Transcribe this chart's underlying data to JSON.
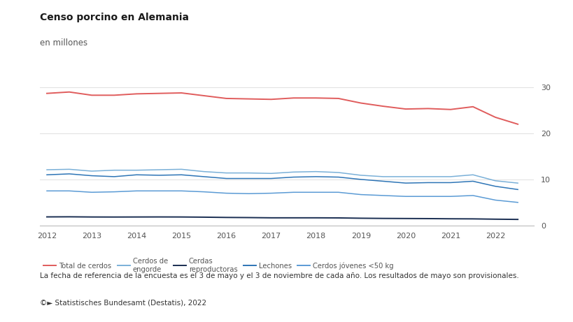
{
  "title": "Censo porcino en Alemania",
  "subtitle": "en millones",
  "background_color": "#ffffff",
  "note": "La fecha de referencia de la encuesta es el 3 de mayo y el 3 de noviembre de cada año. Los resultados de mayo son provisionales.",
  "source": "©► Statistisches Bundesamt (Destatis), 2022",
  "x_values": [
    2012.0,
    2012.5,
    2013.0,
    2013.5,
    2014.0,
    2014.5,
    2015.0,
    2015.5,
    2016.0,
    2016.5,
    2017.0,
    2017.5,
    2018.0,
    2018.5,
    2019.0,
    2019.5,
    2020.0,
    2020.5,
    2021.0,
    2021.5,
    2022.0,
    2022.5
  ],
  "total_cerdos": [
    28.7,
    29.0,
    28.3,
    28.3,
    28.6,
    28.7,
    28.8,
    28.2,
    27.6,
    27.5,
    27.4,
    27.7,
    27.7,
    27.6,
    26.6,
    25.9,
    25.3,
    25.4,
    25.2,
    25.8,
    23.5,
    22.0
  ],
  "cerdos_engorde": [
    12.1,
    12.2,
    11.8,
    12.0,
    12.0,
    12.1,
    12.2,
    11.7,
    11.4,
    11.4,
    11.3,
    11.6,
    11.7,
    11.5,
    10.9,
    10.6,
    10.6,
    10.6,
    10.6,
    11.0,
    9.7,
    9.2
  ],
  "cerdas_reproductoras": [
    1.85,
    1.87,
    1.83,
    1.82,
    1.83,
    1.84,
    1.83,
    1.79,
    1.73,
    1.7,
    1.65,
    1.65,
    1.65,
    1.63,
    1.56,
    1.52,
    1.5,
    1.48,
    1.44,
    1.42,
    1.35,
    1.3
  ],
  "lechones": [
    11.0,
    11.2,
    10.8,
    10.6,
    11.0,
    10.9,
    11.0,
    10.6,
    10.2,
    10.2,
    10.2,
    10.5,
    10.6,
    10.5,
    10.0,
    9.6,
    9.2,
    9.3,
    9.3,
    9.6,
    8.5,
    7.8
  ],
  "cerdos_jovenes": [
    7.5,
    7.5,
    7.2,
    7.3,
    7.5,
    7.5,
    7.5,
    7.3,
    7.0,
    6.9,
    7.0,
    7.2,
    7.2,
    7.2,
    6.7,
    6.5,
    6.3,
    6.3,
    6.3,
    6.5,
    5.5,
    5.0
  ],
  "color_total": "#e05c5c",
  "color_engorde": "#5b9bd5",
  "color_reproductoras": "#1a2e52",
  "color_lechones": "#2e75b6",
  "color_jovenes": "#7ab0d8",
  "ylim": [
    0,
    35
  ],
  "yticks": [
    0,
    10,
    20,
    30
  ],
  "grid_color": "#e0e0e0",
  "axis_color": "#bbbbbb",
  "tick_color": "#555555",
  "legend_labels": [
    "Total de cerdos",
    "Cerdos de\nengorde",
    "Cerdas\nreproductoras",
    "Lechones",
    "Cerdos jóvenes <50 kg"
  ]
}
